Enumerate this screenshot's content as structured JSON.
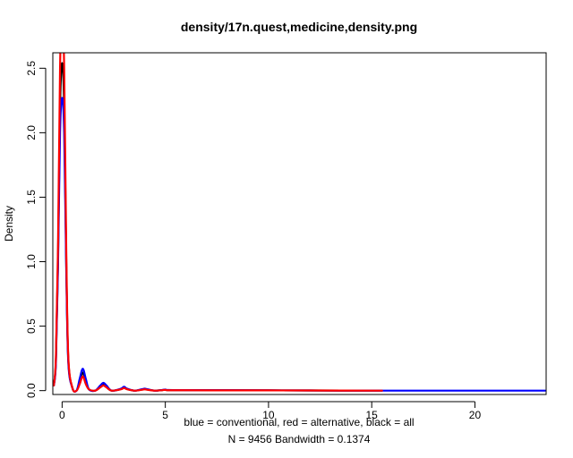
{
  "chart_data": {
    "type": "line",
    "title": "density/17n.quest,medicine,density.png",
    "xlabel_lines": [
      "blue = conventional, red = alternative, black = all",
      "N = 9456   Bandwidth = 0.1374"
    ],
    "ylabel": "Density",
    "xlim": [
      -0.45,
      23.45
    ],
    "ylim": [
      -0.03,
      2.62
    ],
    "x_ticks": [
      0,
      5,
      10,
      15,
      20
    ],
    "x_tick_labels": [
      "0",
      "5",
      "10",
      "15",
      "20"
    ],
    "y_ticks": [
      0.0,
      0.5,
      1.0,
      1.5,
      2.0,
      2.5
    ],
    "y_tick_labels": [
      "0.0",
      "0.5",
      "1.0",
      "1.5",
      "2.0",
      "2.5"
    ],
    "grid": false,
    "series": [
      {
        "color": "#000000",
        "x": [
          -0.4,
          -0.3,
          -0.2,
          -0.1,
          0.0,
          0.1,
          0.2,
          0.3,
          0.5,
          0.7,
          0.85,
          1.0,
          1.15,
          1.3,
          1.6,
          1.85,
          2.0,
          2.15,
          2.4,
          2.85,
          3.0,
          3.15,
          3.5,
          3.85,
          4.0,
          4.15,
          4.5,
          4.85,
          5.0,
          5.15,
          6.0,
          8.0,
          10.0,
          12.0,
          15.5
        ],
        "y": [
          0.04,
          0.24,
          1.0,
          2.2,
          2.54,
          2.2,
          1.0,
          0.24,
          0.02,
          0.0,
          0.07,
          0.14,
          0.07,
          0.01,
          0.0,
          0.03,
          0.05,
          0.03,
          0.0,
          0.012,
          0.025,
          0.012,
          0.0,
          0.008,
          0.012,
          0.008,
          0.0,
          0.004,
          0.007,
          0.004,
          0.004,
          0.003,
          0.002,
          0.001,
          0.0
        ]
      },
      {
        "color": "#0000ff",
        "x": [
          -0.4,
          -0.3,
          -0.2,
          -0.1,
          0.0,
          0.1,
          0.2,
          0.3,
          0.5,
          0.7,
          0.85,
          1.0,
          1.15,
          1.3,
          1.6,
          1.85,
          2.0,
          2.15,
          2.4,
          2.85,
          3.0,
          3.15,
          3.5,
          3.85,
          4.0,
          4.15,
          4.5,
          4.85,
          5.0,
          5.15,
          6.0,
          8.0,
          10.0,
          12.0,
          15.5,
          23.4
        ],
        "y": [
          0.04,
          0.22,
          0.95,
          2.0,
          2.27,
          2.0,
          0.95,
          0.22,
          0.02,
          0.0,
          0.09,
          0.17,
          0.09,
          0.01,
          0.0,
          0.04,
          0.06,
          0.04,
          0.0,
          0.015,
          0.03,
          0.015,
          0.0,
          0.01,
          0.015,
          0.01,
          0.0,
          0.005,
          0.008,
          0.005,
          0.004,
          0.003,
          0.002,
          0.001,
          0.0,
          0.0
        ]
      },
      {
        "color": "#ff0000",
        "x": [
          -0.4,
          -0.3,
          -0.2,
          -0.1,
          0.0,
          0.1,
          0.2,
          0.3,
          0.5,
          0.7,
          0.85,
          1.0,
          1.15,
          1.3,
          1.6,
          1.85,
          2.0,
          2.15,
          2.4,
          2.85,
          3.0,
          3.15,
          3.5,
          3.85,
          4.0,
          4.15,
          4.5,
          4.85,
          5.0,
          5.15,
          6.0,
          8.0,
          10.0,
          12.0,
          15.5
        ],
        "y": [
          0.04,
          0.26,
          1.1,
          2.5,
          2.95,
          2.5,
          1.1,
          0.26,
          0.02,
          0.0,
          0.05,
          0.11,
          0.05,
          0.01,
          0.0,
          0.025,
          0.04,
          0.025,
          0.0,
          0.01,
          0.02,
          0.01,
          0.0,
          0.006,
          0.01,
          0.006,
          0.0,
          0.003,
          0.006,
          0.003,
          0.003,
          0.002,
          0.002,
          0.001,
          0.0
        ]
      }
    ]
  }
}
